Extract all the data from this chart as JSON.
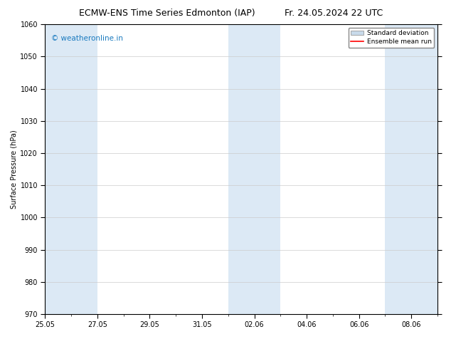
{
  "title": "ECMW-ENS Time Series Edmonton (IAP)",
  "title_right": "Fr. 24.05.2024 22 UTC",
  "ylabel": "Surface Pressure (hPa)",
  "ylim": [
    970,
    1060
  ],
  "yticks": [
    970,
    980,
    990,
    1000,
    1010,
    1020,
    1030,
    1040,
    1050,
    1060
  ],
  "xtick_labels": [
    "25.05",
    "27.05",
    "29.05",
    "31.05",
    "02.06",
    "04.06",
    "06.06",
    "08.06"
  ],
  "background_color": "#ffffff",
  "plot_bg_color": "#ffffff",
  "shaded_band_color": "#dce9f5",
  "watermark_text": "© weatheronline.in",
  "watermark_color": "#1a7abf",
  "legend_std_color": "#c8daea",
  "legend_mean_color": "#ff0000",
  "title_fontsize": 9,
  "axis_fontsize": 7,
  "tick_fontsize": 7,
  "watermark_fontsize": 7.5,
  "total_days": 15
}
